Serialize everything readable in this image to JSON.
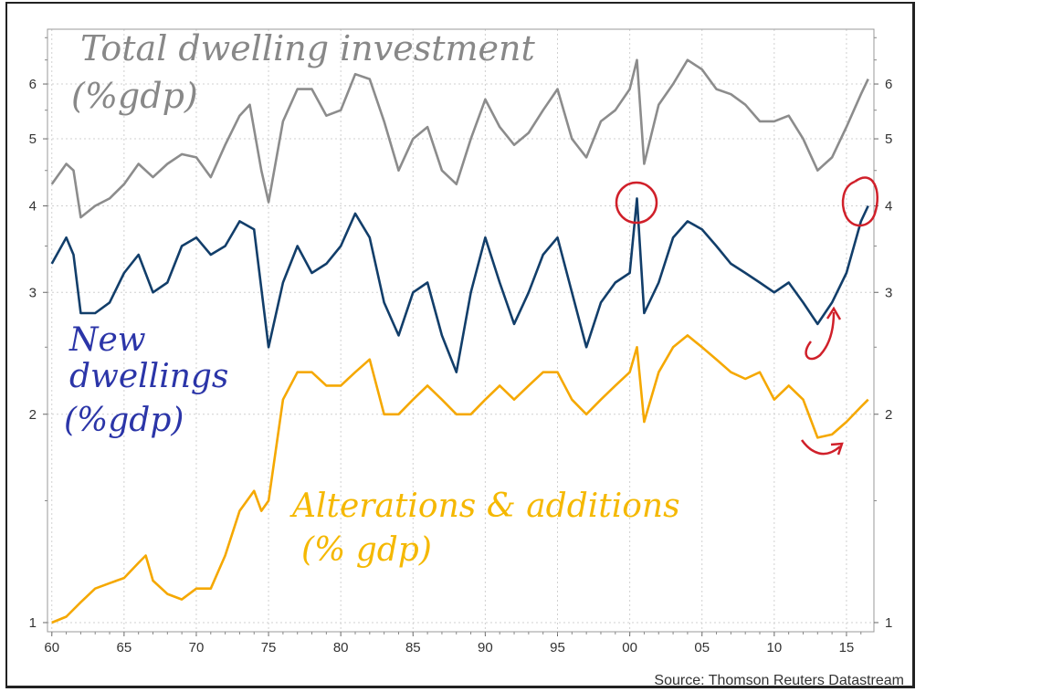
{
  "chart_data": {
    "type": "line",
    "source": "Source: Thomson Reuters Datastream",
    "x_tick_labels": [
      "60",
      "65",
      "70",
      "75",
      "80",
      "85",
      "90",
      "95",
      "00",
      "05",
      "10",
      "15"
    ],
    "x_tick_years": [
      1960,
      1965,
      1970,
      1975,
      1980,
      1985,
      1990,
      1995,
      2000,
      2005,
      2010,
      2015
    ],
    "xlim": [
      1959.7,
      2016.9
    ],
    "y_scale": "log",
    "ylim": [
      0.97,
      7.2
    ],
    "y_ticks": [
      1,
      2,
      3,
      4,
      5,
      6
    ],
    "y_tick_labels": [
      "1",
      "2",
      "3",
      "4",
      "5",
      "6"
    ],
    "grid": true,
    "annotations": [
      {
        "text": "Total dwelling investment",
        "sub": "(%gdp)",
        "color": "#888888"
      },
      {
        "text": "New dwellings",
        "sub": "(%gdp)",
        "color": "#2b35a8",
        "line2": "dwellings"
      },
      {
        "text": "Alterations & additions",
        "sub": "(% gdp)",
        "color": "#f5b800"
      }
    ],
    "series": [
      {
        "color": "#8c8c8c",
        "points": [
          [
            1960,
            4.3
          ],
          [
            1961,
            4.6
          ],
          [
            1961.5,
            4.5
          ],
          [
            1962,
            3.85
          ],
          [
            1963,
            4.0
          ],
          [
            1964,
            4.1
          ],
          [
            1965,
            4.3
          ],
          [
            1966,
            4.6
          ],
          [
            1967,
            4.4
          ],
          [
            1968,
            4.6
          ],
          [
            1969,
            4.75
          ],
          [
            1970,
            4.7
          ],
          [
            1971,
            4.4
          ],
          [
            1972,
            4.9
          ],
          [
            1973,
            5.4
          ],
          [
            1973.7,
            5.6
          ],
          [
            1974.5,
            4.5
          ],
          [
            1975,
            4.05
          ],
          [
            1976,
            5.3
          ],
          [
            1977,
            5.9
          ],
          [
            1978,
            5.9
          ],
          [
            1979,
            5.4
          ],
          [
            1980,
            5.5
          ],
          [
            1981,
            6.2
          ],
          [
            1982,
            6.1
          ],
          [
            1983,
            5.3
          ],
          [
            1984,
            4.5
          ],
          [
            1985,
            5.0
          ],
          [
            1986,
            5.2
          ],
          [
            1987,
            4.5
          ],
          [
            1988,
            4.3
          ],
          [
            1989,
            5.0
          ],
          [
            1990,
            5.7
          ],
          [
            1991,
            5.2
          ],
          [
            1992,
            4.9
          ],
          [
            1993,
            5.1
          ],
          [
            1994,
            5.5
          ],
          [
            1995,
            5.9
          ],
          [
            1996,
            5.0
          ],
          [
            1997,
            4.7
          ],
          [
            1998,
            5.3
          ],
          [
            1999,
            5.5
          ],
          [
            2000,
            5.9
          ],
          [
            2000.5,
            6.5
          ],
          [
            2001,
            4.6
          ],
          [
            2002,
            5.6
          ],
          [
            2003,
            6.0
          ],
          [
            2004,
            6.5
          ],
          [
            2005,
            6.3
          ],
          [
            2006,
            5.9
          ],
          [
            2007,
            5.8
          ],
          [
            2008,
            5.6
          ],
          [
            2009,
            5.3
          ],
          [
            2010,
            5.3
          ],
          [
            2011,
            5.4
          ],
          [
            2012,
            5.0
          ],
          [
            2013,
            4.5
          ],
          [
            2014,
            4.7
          ],
          [
            2015,
            5.2
          ],
          [
            2016,
            5.8
          ],
          [
            2016.5,
            6.1
          ]
        ]
      },
      {
        "color": "#123e6a",
        "points": [
          [
            1960,
            3.3
          ],
          [
            1961,
            3.6
          ],
          [
            1961.5,
            3.4
          ],
          [
            1962,
            2.8
          ],
          [
            1963,
            2.8
          ],
          [
            1964,
            2.9
          ],
          [
            1965,
            3.2
          ],
          [
            1966,
            3.4
          ],
          [
            1967,
            3.0
          ],
          [
            1968,
            3.1
          ],
          [
            1969,
            3.5
          ],
          [
            1970,
            3.6
          ],
          [
            1971,
            3.4
          ],
          [
            1972,
            3.5
          ],
          [
            1973,
            3.8
          ],
          [
            1974,
            3.7
          ],
          [
            1975,
            2.5
          ],
          [
            1976,
            3.1
          ],
          [
            1977,
            3.5
          ],
          [
            1978,
            3.2
          ],
          [
            1979,
            3.3
          ],
          [
            1980,
            3.5
          ],
          [
            1981,
            3.9
          ],
          [
            1982,
            3.6
          ],
          [
            1983,
            2.9
          ],
          [
            1984,
            2.6
          ],
          [
            1985,
            3.0
          ],
          [
            1986,
            3.1
          ],
          [
            1987,
            2.6
          ],
          [
            1988,
            2.3
          ],
          [
            1989,
            3.0
          ],
          [
            1990,
            3.6
          ],
          [
            1991,
            3.1
          ],
          [
            1992,
            2.7
          ],
          [
            1993,
            3.0
          ],
          [
            1994,
            3.4
          ],
          [
            1995,
            3.6
          ],
          [
            1996,
            3.0
          ],
          [
            1997,
            2.5
          ],
          [
            1998,
            2.9
          ],
          [
            1999,
            3.1
          ],
          [
            2000,
            3.2
          ],
          [
            2000.5,
            4.1
          ],
          [
            2001,
            2.8
          ],
          [
            2002,
            3.1
          ],
          [
            2003,
            3.6
          ],
          [
            2004,
            3.8
          ],
          [
            2005,
            3.7
          ],
          [
            2006,
            3.5
          ],
          [
            2007,
            3.3
          ],
          [
            2008,
            3.2
          ],
          [
            2009,
            3.1
          ],
          [
            2010,
            3.0
          ],
          [
            2011,
            3.1
          ],
          [
            2012,
            2.9
          ],
          [
            2013,
            2.7
          ],
          [
            2014,
            2.9
          ],
          [
            2015,
            3.2
          ],
          [
            2016,
            3.8
          ],
          [
            2016.5,
            4.0
          ]
        ]
      },
      {
        "color": "#f5a800",
        "points": [
          [
            1960,
            1.0
          ],
          [
            1961,
            1.02
          ],
          [
            1962,
            1.07
          ],
          [
            1963,
            1.12
          ],
          [
            1964,
            1.14
          ],
          [
            1965,
            1.16
          ],
          [
            1966,
            1.22
          ],
          [
            1966.5,
            1.25
          ],
          [
            1967,
            1.15
          ],
          [
            1968,
            1.1
          ],
          [
            1969,
            1.08
          ],
          [
            1970,
            1.12
          ],
          [
            1971,
            1.12
          ],
          [
            1972,
            1.25
          ],
          [
            1973,
            1.45
          ],
          [
            1974,
            1.55
          ],
          [
            1974.5,
            1.45
          ],
          [
            1975,
            1.5
          ],
          [
            1976,
            2.1
          ],
          [
            1977,
            2.3
          ],
          [
            1978,
            2.3
          ],
          [
            1979,
            2.2
          ],
          [
            1980,
            2.2
          ],
          [
            1981,
            2.3
          ],
          [
            1982,
            2.4
          ],
          [
            1983,
            2.0
          ],
          [
            1984,
            2.0
          ],
          [
            1985,
            2.1
          ],
          [
            1986,
            2.2
          ],
          [
            1987,
            2.1
          ],
          [
            1988,
            2.0
          ],
          [
            1989,
            2.0
          ],
          [
            1990,
            2.1
          ],
          [
            1991,
            2.2
          ],
          [
            1992,
            2.1
          ],
          [
            1993,
            2.2
          ],
          [
            1994,
            2.3
          ],
          [
            1995,
            2.3
          ],
          [
            1996,
            2.1
          ],
          [
            1997,
            2.0
          ],
          [
            1998,
            2.1
          ],
          [
            1999,
            2.2
          ],
          [
            2000,
            2.3
          ],
          [
            2000.5,
            2.5
          ],
          [
            2001,
            1.95
          ],
          [
            2002,
            2.3
          ],
          [
            2003,
            2.5
          ],
          [
            2004,
            2.6
          ],
          [
            2005,
            2.5
          ],
          [
            2006,
            2.4
          ],
          [
            2007,
            2.3
          ],
          [
            2008,
            2.25
          ],
          [
            2009,
            2.3
          ],
          [
            2010,
            2.1
          ],
          [
            2011,
            2.2
          ],
          [
            2012,
            2.1
          ],
          [
            2013,
            1.85
          ],
          [
            2014,
            1.87
          ],
          [
            2015,
            1.95
          ],
          [
            2016,
            2.05
          ],
          [
            2016.5,
            2.1
          ]
        ]
      }
    ]
  }
}
